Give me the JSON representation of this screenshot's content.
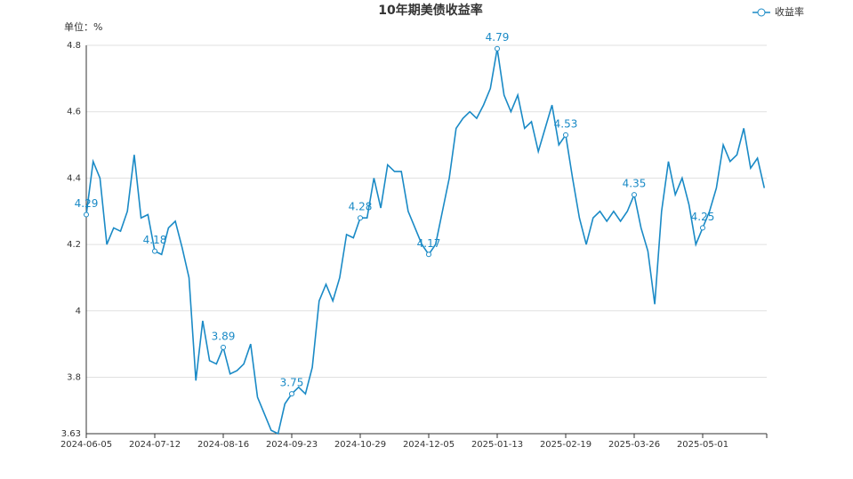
{
  "chart_data": {
    "type": "line",
    "title": "10年期美债收益率",
    "unit_label": "单位：%",
    "categories": [
      "2024-06-05",
      null,
      null,
      null,
      null,
      null,
      null,
      null,
      null,
      null,
      "2024-07-12",
      null,
      null,
      null,
      null,
      null,
      null,
      null,
      null,
      null,
      "2024-08-16",
      null,
      null,
      null,
      null,
      null,
      null,
      null,
      null,
      null,
      "2024-09-23",
      null,
      null,
      null,
      null,
      null,
      null,
      null,
      null,
      null,
      "2024-10-29",
      null,
      null,
      null,
      null,
      null,
      null,
      null,
      null,
      null,
      "2024-12-05",
      null,
      null,
      null,
      null,
      null,
      null,
      null,
      null,
      null,
      "2025-01-13",
      null,
      null,
      null,
      null,
      null,
      null,
      null,
      null,
      null,
      "2025-02-19",
      null,
      null,
      null,
      null,
      null,
      null,
      null,
      null,
      null,
      "2025-03-26",
      null,
      null,
      null,
      null,
      null,
      null,
      null,
      null,
      null,
      "2025-05-01",
      null,
      null,
      null,
      null,
      null,
      null,
      null,
      null,
      null
    ],
    "series": [
      {
        "name": "收益率",
        "color": "#1a8ac6",
        "values": [
          4.29,
          4.45,
          4.4,
          4.2,
          4.25,
          4.24,
          4.3,
          4.47,
          4.28,
          4.29,
          4.18,
          4.17,
          4.25,
          4.27,
          4.19,
          4.1,
          3.79,
          3.97,
          3.85,
          3.84,
          3.89,
          3.81,
          3.82,
          3.84,
          3.9,
          3.74,
          3.69,
          3.64,
          3.63,
          3.72,
          3.75,
          3.77,
          3.75,
          3.83,
          4.03,
          4.08,
          4.03,
          4.1,
          4.23,
          4.22,
          4.28,
          4.28,
          4.4,
          4.31,
          4.44,
          4.42,
          4.42,
          4.3,
          4.25,
          4.2,
          4.17,
          4.2,
          4.3,
          4.4,
          4.55,
          4.58,
          4.6,
          4.58,
          4.62,
          4.67,
          4.79,
          4.65,
          4.6,
          4.65,
          4.55,
          4.57,
          4.48,
          4.55,
          4.62,
          4.5,
          4.53,
          4.4,
          4.28,
          4.2,
          4.28,
          4.3,
          4.27,
          4.3,
          4.27,
          4.3,
          4.35,
          4.25,
          4.18,
          4.02,
          4.3,
          4.45,
          4.35,
          4.4,
          4.32,
          4.2,
          4.25,
          4.3,
          4.37,
          4.5,
          4.45,
          4.47,
          4.55,
          4.43,
          4.46,
          4.37
        ],
        "labeled_values": [
          4.29,
          null,
          null,
          null,
          null,
          null,
          null,
          null,
          null,
          null,
          4.18,
          null,
          null,
          null,
          null,
          null,
          null,
          null,
          null,
          null,
          3.89,
          null,
          null,
          null,
          null,
          null,
          null,
          null,
          null,
          null,
          3.75,
          null,
          null,
          null,
          null,
          null,
          null,
          null,
          null,
          null,
          4.28,
          null,
          null,
          null,
          null,
          null,
          null,
          null,
          null,
          null,
          4.17,
          null,
          null,
          null,
          null,
          null,
          null,
          null,
          null,
          null,
          4.79,
          null,
          null,
          null,
          null,
          null,
          null,
          null,
          null,
          null,
          4.53,
          null,
          null,
          null,
          null,
          null,
          null,
          null,
          null,
          null,
          4.35,
          null,
          null,
          null,
          null,
          null,
          null,
          null,
          null,
          null,
          4.25,
          null,
          null,
          null,
          null,
          null,
          null,
          null,
          null,
          null
        ]
      }
    ],
    "ylim": [
      3.63,
      4.8
    ],
    "yticks": [
      3.63,
      3.8,
      4,
      4.2,
      4.4,
      4.6,
      4.8
    ],
    "grid": true,
    "legend": "top-right"
  }
}
